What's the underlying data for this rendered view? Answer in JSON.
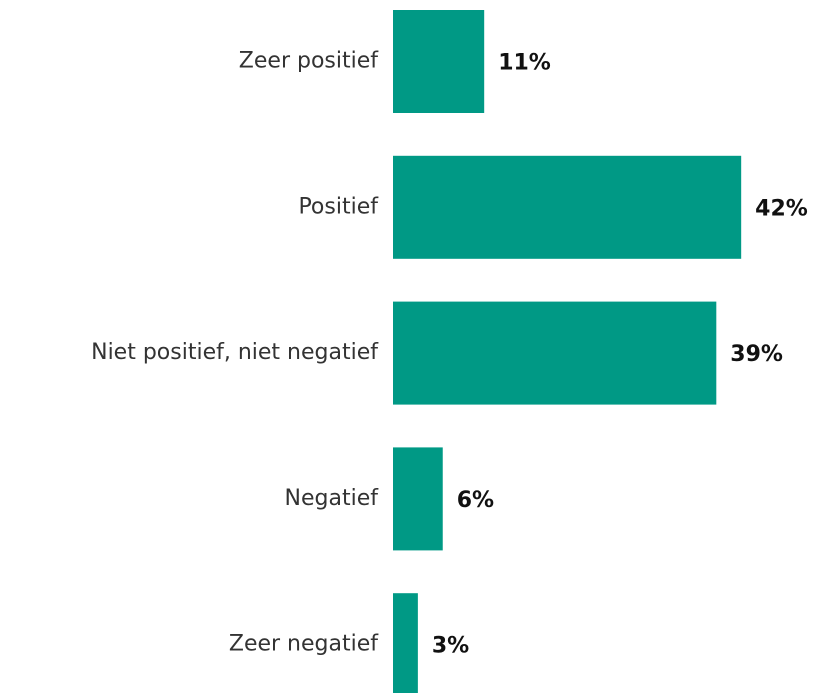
{
  "chart_data": {
    "type": "hbar",
    "categories": [
      "Zeer positief",
      "Positief",
      "Niet positief, niet negatief",
      "Negatief",
      "Zeer negatief"
    ],
    "values": [
      11,
      42,
      39,
      6,
      3
    ],
    "value_labels": [
      "11%",
      "42%",
      "39%",
      "6%",
      "3%"
    ],
    "color": "#009985"
  }
}
